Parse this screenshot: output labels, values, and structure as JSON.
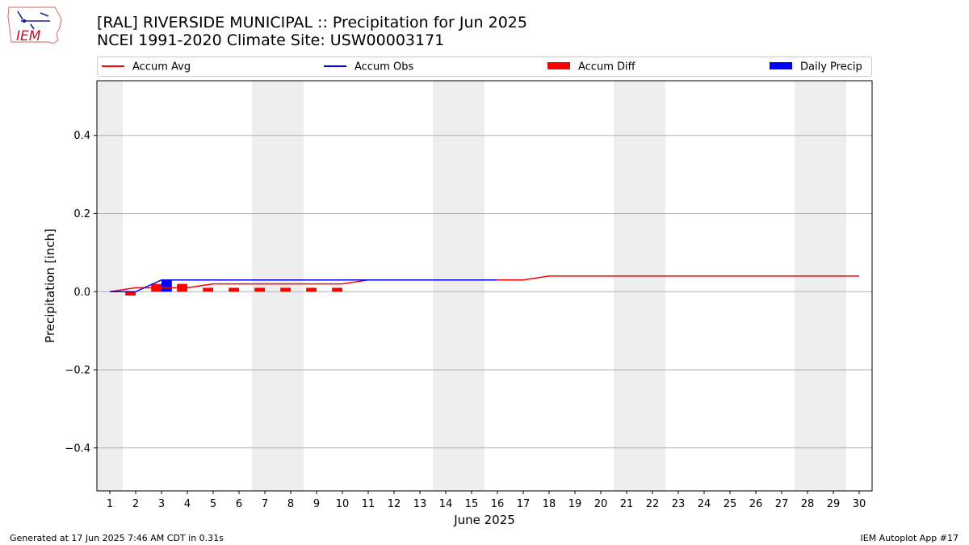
{
  "header": {
    "title_line1": "[RAL] RIVERSIDE MUNICIPAL :: Precipitation for Jun 2025",
    "title_line2": "NCEI 1991-2020 Climate Site: USW00003171"
  },
  "logo": {
    "text": "IEM",
    "color": "#c8102e"
  },
  "footer": {
    "generated": "Generated at 17 Jun 2025 7:46 AM CDT in 0.31s",
    "app": "IEM Autoplot App #17"
  },
  "chart_data": {
    "type": "line",
    "xlabel": "June 2025",
    "ylabel": "Precipitation [inch]",
    "xlim": [
      0.5,
      30.5
    ],
    "ylim": [
      -0.51,
      0.54
    ],
    "x_ticks": [
      1,
      2,
      3,
      4,
      5,
      6,
      7,
      8,
      9,
      10,
      11,
      12,
      13,
      14,
      15,
      16,
      17,
      18,
      19,
      20,
      21,
      22,
      23,
      24,
      25,
      26,
      27,
      28,
      29,
      30
    ],
    "y_ticks": [
      -0.4,
      -0.2,
      0.0,
      0.2,
      0.4
    ],
    "y_tick_labels": [
      "−0.4",
      "−0.2",
      "0.0",
      "0.2",
      "0.4"
    ],
    "grid": "y",
    "legend_position": "top",
    "weekend_shading": [
      [
        0.5,
        1.5
      ],
      [
        6.5,
        8.5
      ],
      [
        13.5,
        15.5
      ],
      [
        20.5,
        22.5
      ],
      [
        27.5,
        29.5
      ]
    ],
    "colors": {
      "avg": "#ff0000",
      "obs": "#0000ff",
      "diff": "#ff0000",
      "daily": "#0000ff",
      "shade": "#eeeeee",
      "grid": "#b0b0b0"
    },
    "legend": [
      {
        "label": "Accum Avg",
        "kind": "line",
        "color": "#ff0000"
      },
      {
        "label": "Accum Obs",
        "kind": "line",
        "color": "#0000ff"
      },
      {
        "label": "Accum Diff",
        "kind": "bar",
        "color": "#ff0000"
      },
      {
        "label": "Daily Precip",
        "kind": "bar",
        "color": "#0000ff"
      }
    ],
    "series": [
      {
        "name": "Accum Avg",
        "kind": "line",
        "x": [
          1,
          2,
          3,
          4,
          5,
          6,
          7,
          8,
          9,
          10,
          11,
          12,
          13,
          14,
          15,
          16,
          17,
          18,
          19,
          20,
          21,
          22,
          23,
          24,
          25,
          26,
          27,
          28,
          29,
          30
        ],
        "values": [
          0.0,
          0.01,
          0.01,
          0.01,
          0.02,
          0.02,
          0.02,
          0.02,
          0.02,
          0.02,
          0.03,
          0.03,
          0.03,
          0.03,
          0.03,
          0.03,
          0.03,
          0.04,
          0.04,
          0.04,
          0.04,
          0.04,
          0.04,
          0.04,
          0.04,
          0.04,
          0.04,
          0.04,
          0.04,
          0.04
        ]
      },
      {
        "name": "Accum Obs",
        "kind": "line",
        "x": [
          1,
          2,
          3,
          4,
          5,
          6,
          7,
          8,
          9,
          10,
          11,
          12,
          13,
          14,
          15,
          16
        ],
        "values": [
          0.0,
          0.0,
          0.03,
          0.03,
          0.03,
          0.03,
          0.03,
          0.03,
          0.03,
          0.03,
          0.03,
          0.03,
          0.03,
          0.03,
          0.03,
          0.03
        ]
      },
      {
        "name": "Accum Diff",
        "kind": "bar",
        "x": [
          2,
          3,
          4,
          5,
          6,
          7,
          8,
          9,
          10
        ],
        "values": [
          -0.01,
          0.02,
          0.02,
          0.01,
          0.01,
          0.01,
          0.01,
          0.01,
          0.01
        ]
      },
      {
        "name": "Daily Precip",
        "kind": "bar",
        "x": [
          3
        ],
        "values": [
          0.03
        ]
      }
    ]
  }
}
